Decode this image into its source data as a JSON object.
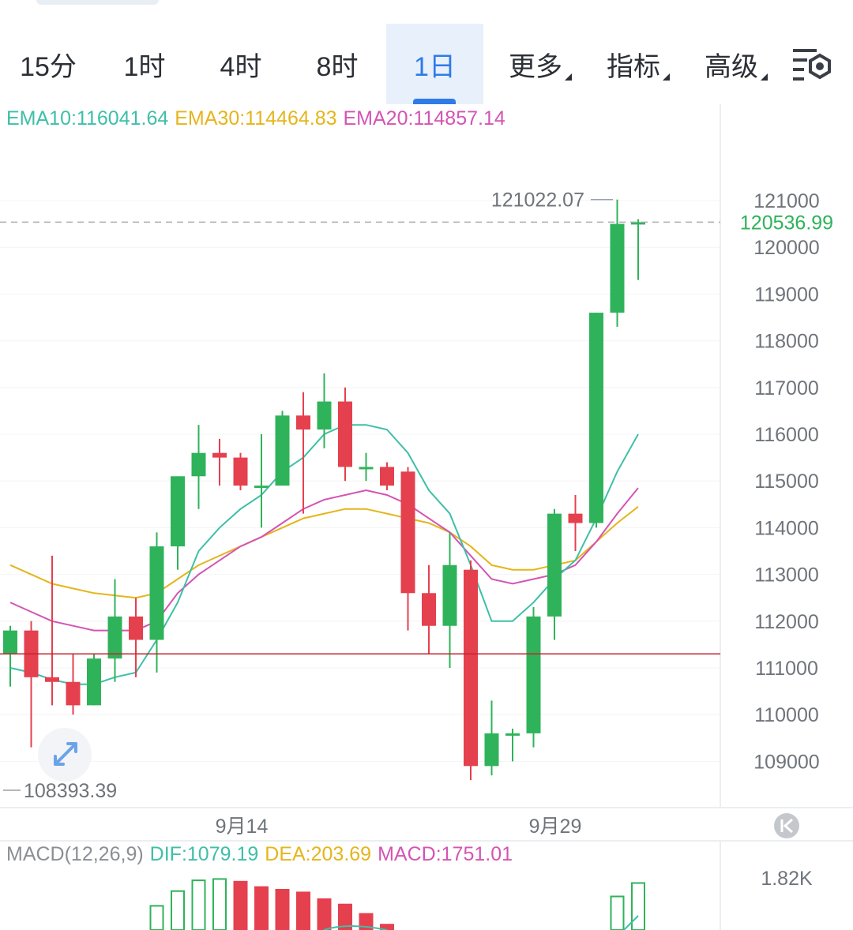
{
  "tabs": [
    {
      "label": "15分"
    },
    {
      "label": "1时"
    },
    {
      "label": "4时"
    },
    {
      "label": "8时"
    },
    {
      "label": "1日",
      "active": true
    },
    {
      "label": "更多",
      "dropdown": true
    },
    {
      "label": "指标",
      "dropdown": true
    },
    {
      "label": "高级",
      "dropdown": true
    }
  ],
  "settings_icon": "chart-settings-icon",
  "legend": {
    "ema10": "EMA10:116041.64",
    "ema30": "EMA30:114464.83",
    "ema20": "EMA20:114857.14"
  },
  "price_axis": [
    "121000",
    "120000",
    "119000",
    "118000",
    "117000",
    "116000",
    "115000",
    "114000",
    "113000",
    "112000",
    "111000",
    "110000",
    "109000"
  ],
  "current_price": "120536.99",
  "high_label": "121022.07",
  "low_label": "108393.39",
  "date_labels": [
    "9月14",
    "9月29"
  ],
  "expand_icon": "expand-arrows-icon",
  "scroll_end_icon": "scroll-to-latest-icon",
  "macd_legend": {
    "params": "MACD(12,26,9)",
    "dif": "DIF:1079.19",
    "dea": "DEA:203.69",
    "macd": "MACD:1751.01"
  },
  "macd_axis_label": "1.82K",
  "colors": {
    "up": "#2fb35a",
    "down": "#e5404e",
    "ema10": "#3ebfa8",
    "ema30": "#e5b51b",
    "ema20": "#d454b3",
    "accent": "#2f7be8",
    "ref_line": "#c0262e"
  },
  "chart_data": {
    "type": "candlestick",
    "reference_line": 111300,
    "candles": [
      {
        "o": 111300,
        "c": 111800,
        "h": 111900,
        "l": 110600
      },
      {
        "o": 111800,
        "c": 110800,
        "h": 112000,
        "l": 109300
      },
      {
        "o": 110800,
        "c": 110700,
        "h": 113400,
        "l": 110200
      },
      {
        "o": 110700,
        "c": 110200,
        "h": 111300,
        "l": 110000
      },
      {
        "o": 110200,
        "c": 111200,
        "h": 111300,
        "l": 110200
      },
      {
        "o": 111200,
        "c": 112100,
        "h": 112900,
        "l": 110700
      },
      {
        "o": 112100,
        "c": 111600,
        "h": 112500,
        "l": 110800
      },
      {
        "o": 111600,
        "c": 113600,
        "h": 113900,
        "l": 110900
      },
      {
        "o": 113600,
        "c": 115100,
        "h": 115100,
        "l": 113100
      },
      {
        "o": 115100,
        "c": 115600,
        "h": 116200,
        "l": 114400
      },
      {
        "o": 115600,
        "c": 115500,
        "h": 115900,
        "l": 114900
      },
      {
        "o": 115500,
        "c": 114900,
        "h": 115600,
        "l": 114800
      },
      {
        "o": 114900,
        "c": 114900,
        "h": 116000,
        "l": 114000
      },
      {
        "o": 114900,
        "c": 116400,
        "h": 116500,
        "l": 114900
      },
      {
        "o": 116400,
        "c": 116100,
        "h": 116900,
        "l": 114300
      },
      {
        "o": 116100,
        "c": 116700,
        "h": 117300,
        "l": 115700
      },
      {
        "o": 116700,
        "c": 115300,
        "h": 117000,
        "l": 115000
      },
      {
        "o": 115300,
        "c": 115300,
        "h": 115600,
        "l": 115000
      },
      {
        "o": 115300,
        "c": 114900,
        "h": 115400,
        "l": 114800
      },
      {
        "o": 115200,
        "c": 112600,
        "h": 115300,
        "l": 111800
      },
      {
        "o": 112600,
        "c": 111900,
        "h": 113200,
        "l": 111300
      },
      {
        "o": 111900,
        "c": 113200,
        "h": 113900,
        "l": 111000
      },
      {
        "o": 113100,
        "c": 108900,
        "h": 113300,
        "l": 108600
      },
      {
        "o": 108900,
        "c": 109600,
        "h": 110300,
        "l": 108700
      },
      {
        "o": 109600,
        "c": 109600,
        "h": 109700,
        "l": 109000
      },
      {
        "o": 109600,
        "c": 112100,
        "h": 112300,
        "l": 109300
      },
      {
        "o": 112100,
        "c": 114300,
        "h": 114400,
        "l": 111600
      },
      {
        "o": 114300,
        "c": 114100,
        "h": 114700,
        "l": 113500
      },
      {
        "o": 114100,
        "c": 118600,
        "h": 118600,
        "l": 114000
      },
      {
        "o": 118600,
        "c": 120500,
        "h": 121022,
        "l": 118300
      },
      {
        "o": 120500,
        "c": 120537,
        "h": 120600,
        "l": 119300
      }
    ],
    "ema10": [
      111000,
      110900,
      110750,
      110650,
      110650,
      110800,
      110900,
      111600,
      112400,
      113500,
      114000,
      114400,
      114700,
      115200,
      115500,
      116000,
      116200,
      116200,
      116100,
      115600,
      114800,
      114300,
      113200,
      112000,
      112000,
      112400,
      112900,
      113300,
      114200,
      115200,
      116000
    ],
    "ema20": [
      112400,
      112200,
      112000,
      111900,
      111800,
      111800,
      111800,
      112000,
      112600,
      113000,
      113300,
      113600,
      113800,
      114100,
      114400,
      114600,
      114700,
      114800,
      114700,
      114500,
      114200,
      113900,
      113400,
      112900,
      112800,
      112900,
      113000,
      113200,
      113700,
      114300,
      114850
    ],
    "ema30": [
      113200,
      113000,
      112800,
      112700,
      112600,
      112550,
      112500,
      112600,
      112900,
      113200,
      113400,
      113600,
      113800,
      114000,
      114200,
      114300,
      114400,
      114400,
      114300,
      114200,
      114100,
      113900,
      113600,
      113200,
      113100,
      113100,
      113200,
      113300,
      113700,
      114100,
      114450
    ],
    "macd_bars": [
      0,
      0,
      0,
      0,
      0,
      0,
      0,
      900,
      1450,
      1850,
      1900,
      1800,
      1600,
      1500,
      1400,
      1150,
      950,
      600,
      200,
      0,
      0,
      0,
      0,
      0,
      0,
      0,
      0,
      0,
      0,
      1250,
      1751
    ],
    "macd_bar_colors": [
      "up",
      "up",
      "up",
      "up",
      "up",
      "up",
      "up",
      "up",
      "up",
      "up",
      "up",
      "down",
      "down",
      "down",
      "down",
      "down",
      "down",
      "down",
      "down",
      "down",
      "down",
      "down",
      "down",
      "down",
      "down",
      "down",
      "up",
      "up",
      "up",
      "up",
      "up"
    ],
    "dates": [
      "9月14",
      "9月29"
    ]
  }
}
